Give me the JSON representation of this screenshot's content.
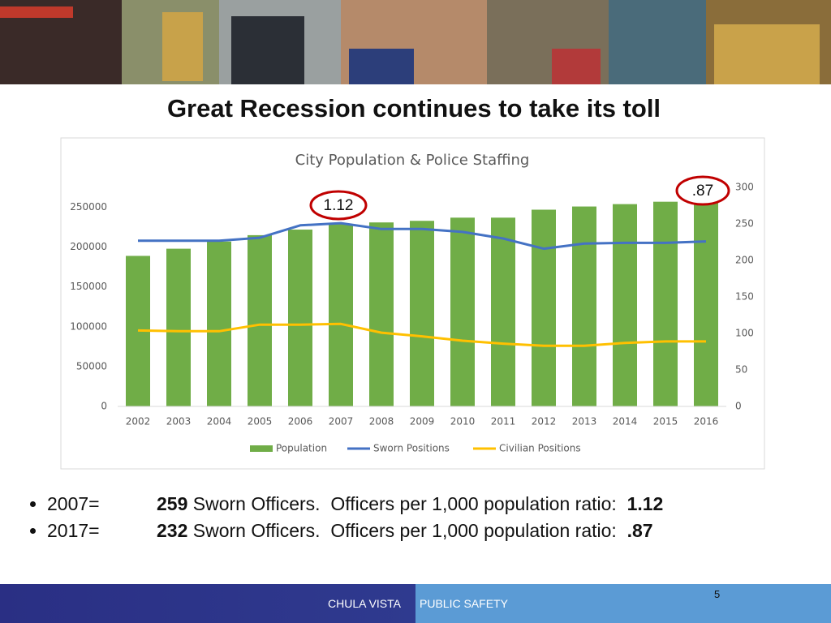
{
  "title": "Great Recession continues to take its toll",
  "chart_data": {
    "type": "bar-line",
    "title": "City Population & Police Staffing",
    "categories": [
      "2002",
      "2003",
      "2004",
      "2005",
      "2006",
      "2007",
      "2008",
      "2009",
      "2010",
      "2011",
      "2012",
      "2013",
      "2014",
      "2015",
      "2016"
    ],
    "series": [
      {
        "name": "Population",
        "type": "bar",
        "color": "#70ad47",
        "axis": "y",
        "values": [
          189000,
          198000,
          207000,
          215000,
          222000,
          229000,
          231000,
          233000,
          237000,
          237000,
          247000,
          251000,
          254000,
          257000,
          261000
        ]
      },
      {
        "name": "Sworn Positions",
        "type": "line",
        "color": "#4472c4",
        "axis": "y2",
        "values": [
          227,
          227,
          227,
          231,
          248,
          251,
          243,
          243,
          239,
          230,
          216,
          223,
          224,
          224,
          226
        ]
      },
      {
        "name": "Civilian Positions",
        "type": "line",
        "color": "#ffc000",
        "axis": "y2",
        "values": [
          104,
          103,
          103,
          112,
          112,
          113,
          101,
          96,
          90,
          86,
          83,
          83,
          87,
          89,
          89
        ]
      }
    ],
    "ylim": [
      0,
      275000
    ],
    "yticks": [
      0,
      50000,
      100000,
      150000,
      200000,
      250000
    ],
    "y2lim": [
      0,
      300
    ],
    "y2ticks": [
      0,
      50,
      100,
      150,
      200,
      250,
      300
    ],
    "grid": false,
    "legend": "bottom",
    "annotations": [
      {
        "text": "1.12",
        "color": "#c00000"
      },
      {
        "text": ".87",
        "color": "#c00000"
      }
    ]
  },
  "bullets": [
    {
      "label": "2007=",
      "count": "259",
      "text": " Sworn Officers.  Officers per 1,000 population ratio:  ",
      "ratio": "1.12"
    },
    {
      "label": "2017=",
      "count": "232",
      "text": " Sworn Officers.  Officers per 1,000 population ratio:  ",
      "ratio": ".87"
    }
  ],
  "footer": {
    "left": "CHULA VISTA",
    "right": "PUBLIC SAFETY",
    "page": 5
  }
}
